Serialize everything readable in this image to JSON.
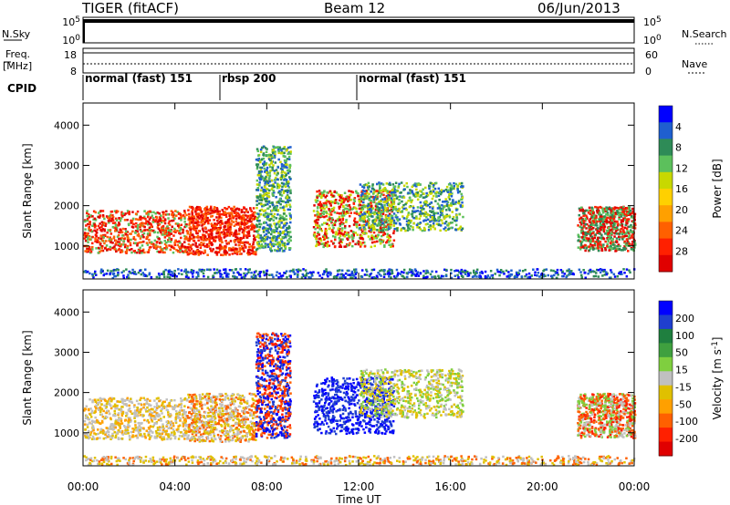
{
  "header": {
    "title": "TIGER (fitACF)",
    "beam": "Beam 12",
    "date": "06/Jun/2013"
  },
  "top_panels": {
    "nsky_label": "N.Sky",
    "nsky_ticks": [
      "10^5",
      "10^0"
    ],
    "nsearch_label": "N.Search",
    "nsearch_ticks": [
      "10^5",
      "10^0"
    ],
    "freq_label": "Freq.",
    "freq_unit": "[MHz]",
    "freq_ticks": [
      "18",
      "8"
    ],
    "nave_label": "Nave",
    "nave_ticks": [
      "60",
      "0"
    ],
    "cpid_label": "CPID"
  },
  "cpid_segments": [
    {
      "label": "normal (fast) 151",
      "start_ut": 0,
      "end_ut": 6
    },
    {
      "label": "rbsp 200",
      "start_ut": 6,
      "end_ut": 12
    },
    {
      "label": "normal (fast) 151",
      "start_ut": 12,
      "end_ut": 24
    }
  ],
  "chart_data": [
    {
      "type": "heatmap",
      "panel": "power",
      "ylabel": "Slant Range [km]",
      "xlabel": "Time UT",
      "x_ticks": [
        "00:00",
        "04:00",
        "08:00",
        "12:00",
        "16:00",
        "20:00",
        "00:00"
      ],
      "x_range_ut": [
        0,
        24
      ],
      "y_ticks": [
        1000,
        2000,
        3000,
        4000
      ],
      "ylim": [
        180,
        4550
      ],
      "colorbar_label": "Power [dB]",
      "colorbar_ticks": [
        4,
        8,
        12,
        16,
        20,
        24,
        28
      ],
      "colorbar_colors": [
        "#0000ff",
        "#1f5fcf",
        "#2e8b57",
        "#5cc05c",
        "#c8d800",
        "#ffd000",
        "#ffa000",
        "#ff6000",
        "#ff2000",
        "#e00000"
      ]
    },
    {
      "type": "heatmap",
      "panel": "velocity",
      "ylabel": "Slant Range [km]",
      "xlabel": "Time UT",
      "x_ticks": [
        "00:00",
        "04:00",
        "08:00",
        "12:00",
        "16:00",
        "20:00",
        "00:00"
      ],
      "x_range_ut": [
        0,
        24
      ],
      "y_ticks": [
        1000,
        2000,
        3000,
        4000
      ],
      "ylim": [
        180,
        4550
      ],
      "colorbar_label": "Velocity [m s^-1]",
      "colorbar_ticks": [
        200,
        100,
        50,
        15,
        -15,
        -50,
        -100,
        -200
      ],
      "colorbar_colors": [
        "#0000ff",
        "#1f3fcf",
        "#1f7f3f",
        "#3fa03f",
        "#7fcf3f",
        "#c0c0c0",
        "#e0c000",
        "#ffa000",
        "#ff6000",
        "#ff2000",
        "#e00000"
      ]
    }
  ]
}
